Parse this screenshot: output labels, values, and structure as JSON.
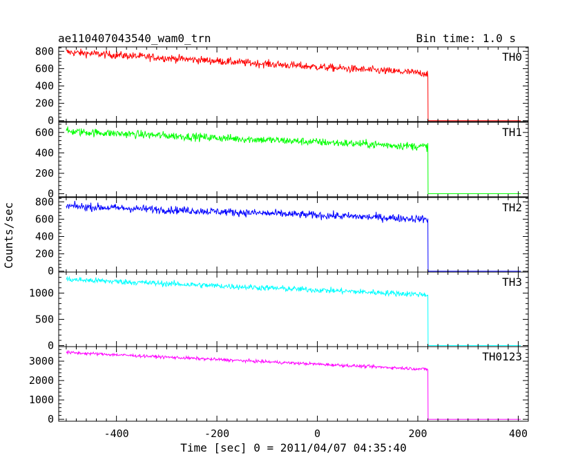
{
  "chart_data": {
    "type": "line",
    "title_left": "ae110407043540_wam0_trn",
    "title_right": "Bin time: 1.0 s",
    "xlabel": "Time [sec] 0 = 2011/04/07 04:35:40",
    "ylabel": "Counts/sec",
    "xlim": [
      -515,
      420
    ],
    "x_ticks": [
      -400,
      -200,
      0,
      200,
      400
    ],
    "data_start": -500,
    "data_end": 220,
    "grid": false,
    "panels": [
      {
        "name": "TH0",
        "color": "#ff0000",
        "ylim": [
          -10,
          850
        ],
        "y_ticks": [
          0,
          200,
          400,
          600,
          800
        ],
        "level_start": 790,
        "level_end": 545,
        "noise": 40,
        "after_value": 0
      },
      {
        "name": "TH1",
        "color": "#00ff00",
        "ylim": [
          -30,
          700
        ],
        "y_ticks": [
          0,
          200,
          400,
          600
        ],
        "level_start": 610,
        "level_end": 460,
        "noise": 35,
        "after_value": 0
      },
      {
        "name": "TH2",
        "color": "#0000ff",
        "ylim": [
          -10,
          850
        ],
        "y_ticks": [
          0,
          200,
          400,
          600,
          800
        ],
        "level_start": 750,
        "level_end": 600,
        "noise": 40,
        "after_value": 0
      },
      {
        "name": "TH3",
        "color": "#00ffff",
        "ylim": [
          -20,
          1400
        ],
        "y_ticks": [
          0,
          500,
          1000
        ],
        "level_start": 1260,
        "level_end": 970,
        "noise": 50,
        "after_value": 0
      },
      {
        "name": "TH0123",
        "color": "#ff00ff",
        "ylim": [
          -100,
          3750
        ],
        "y_ticks": [
          0,
          1000,
          2000,
          3000
        ],
        "level_start": 3450,
        "level_end": 2580,
        "noise": 70,
        "after_value": 0
      }
    ]
  }
}
